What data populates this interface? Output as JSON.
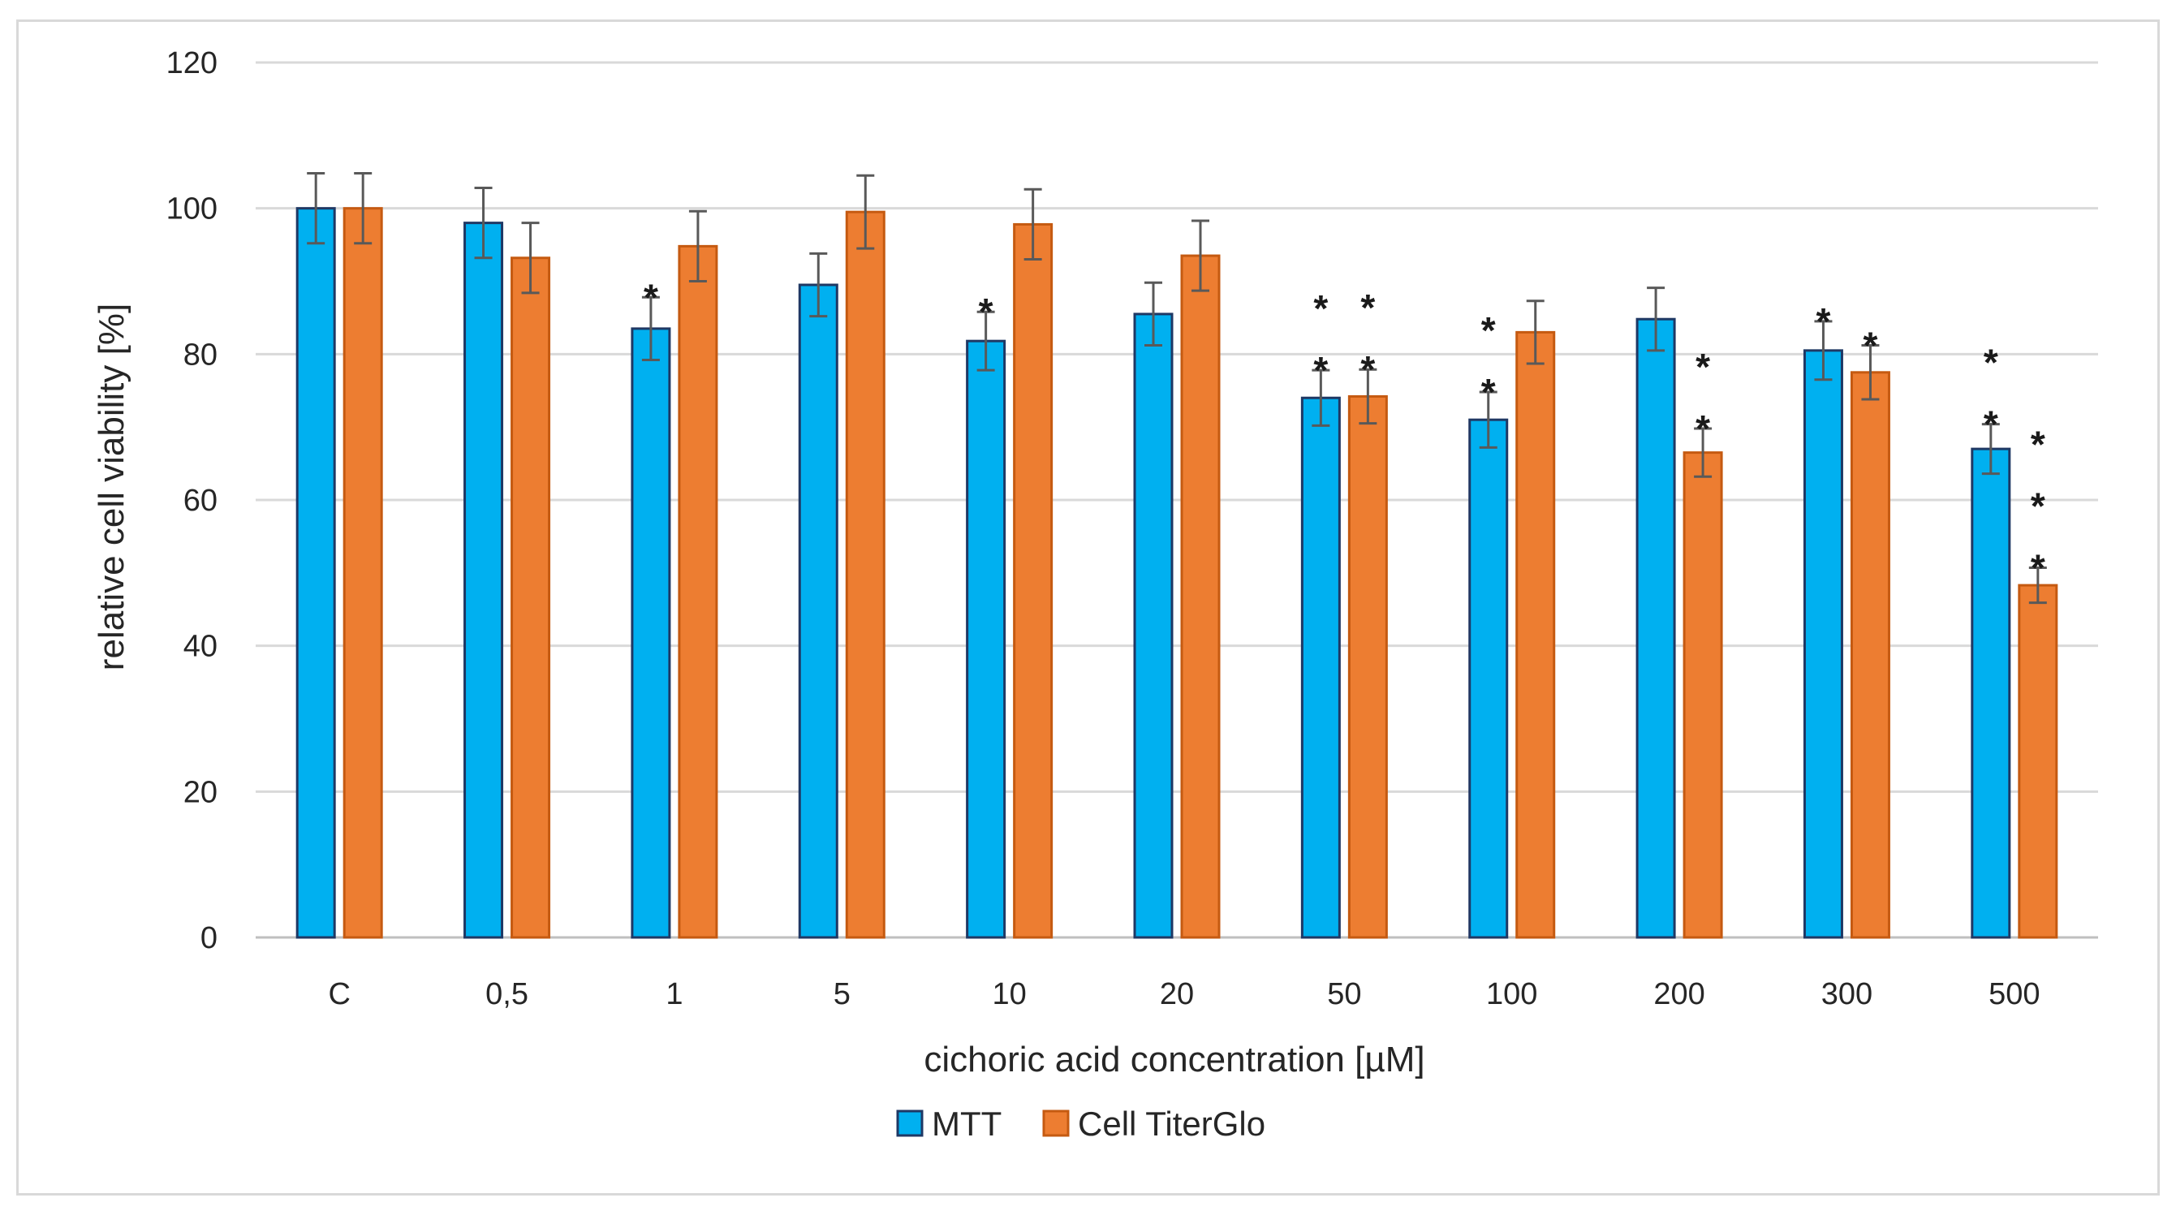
{
  "chart_data": {
    "type": "bar",
    "title": "",
    "xlabel": "cichoric acid concentration [µM]",
    "ylabel": "relative cell viability [%]",
    "ylim": [
      0,
      120
    ],
    "yticks": [
      0,
      20,
      40,
      60,
      80,
      100,
      120
    ],
    "grid": true,
    "legend_position": "bottom",
    "categories": [
      "C",
      "0,5",
      "1",
      "5",
      "10",
      "20",
      "50",
      "100",
      "200",
      "300",
      "500"
    ],
    "series": [
      {
        "name": "MTT",
        "color": "#00b0f0",
        "edge_color": "#1f3864",
        "values": [
          100,
          98,
          83.5,
          89.5,
          81.8,
          85.5,
          74,
          71,
          84.8,
          80.5,
          67
        ],
        "errors": [
          4.8,
          4.8,
          4.3,
          4.3,
          4.0,
          4.3,
          3.8,
          3.8,
          4.3,
          4.0,
          3.4
        ],
        "significance": [
          "",
          "",
          "*",
          "",
          "*",
          "",
          "**",
          "**",
          "",
          "*",
          "**"
        ]
      },
      {
        "name": "Cell TiterGlo",
        "color": "#ed7d31",
        "edge_color": "#c55a11",
        "values": [
          100,
          93.2,
          94.8,
          99.5,
          97.8,
          93.5,
          74.2,
          83,
          66.5,
          77.5,
          48.3
        ],
        "errors": [
          4.8,
          4.8,
          4.8,
          5.0,
          4.8,
          4.8,
          3.7,
          4.3,
          3.3,
          3.7,
          2.4
        ],
        "significance": [
          "",
          "",
          "",
          "",
          "",
          "",
          "**",
          "",
          "**",
          "*",
          "***"
        ]
      }
    ]
  }
}
